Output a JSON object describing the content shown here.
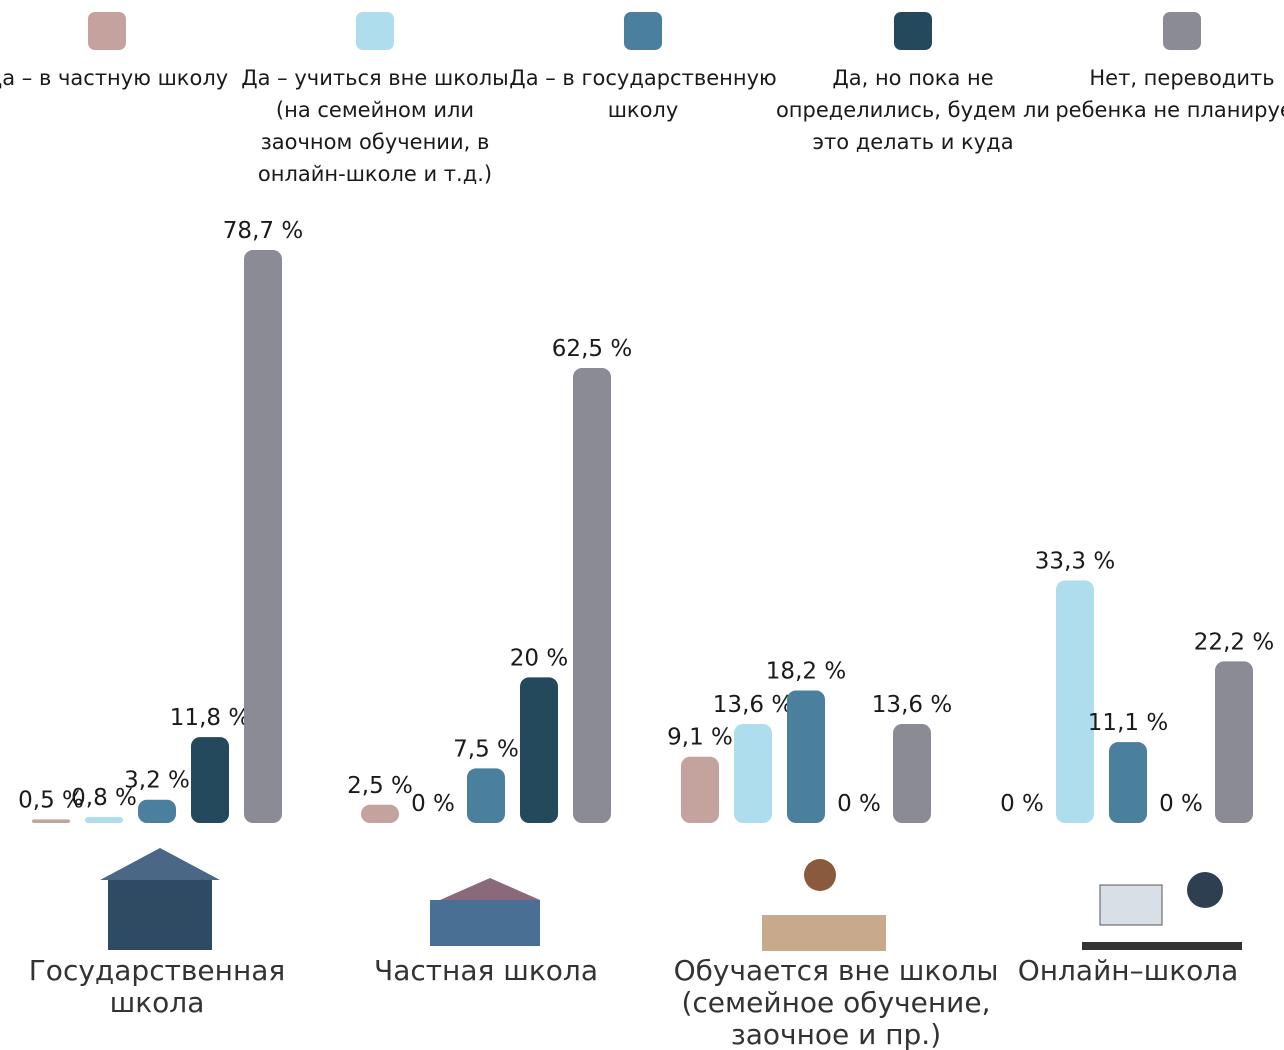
{
  "chart_data": {
    "type": "bar",
    "categories": [
      "Государственная школа",
      "Частная школа",
      "Обучается вне школы (семейное обучение, заочное и пр.)",
      "Онлайн–школа"
    ],
    "series": [
      {
        "name": "Да – в частную школу",
        "color": "#c4a39f",
        "values": [
          0.5,
          2.5,
          9.1,
          0
        ],
        "value_labels": [
          "0,5 %",
          "2,5 %",
          "9,1 %",
          "0 %"
        ]
      },
      {
        "name": "Да – учиться вне школы (на семейном или заочном обучении, в онлайн-школе и т.д.)",
        "color": "#aedded",
        "values": [
          0.8,
          0,
          13.6,
          33.3
        ],
        "value_labels": [
          "0,8 %",
          "0 %",
          "13,6 %",
          "33,3 %"
        ]
      },
      {
        "name": "Да – в государствен­ную школу",
        "color": "#4a7f9e",
        "values": [
          3.2,
          7.5,
          18.2,
          11.1
        ],
        "value_labels": [
          "3,2 %",
          "7,5 %",
          "18,2 %",
          "11,1 %"
        ]
      },
      {
        "name": "Да, но пока не определились, будем ли это делать и куда",
        "color": "#24495c",
        "values": [
          11.8,
          20,
          0,
          0
        ],
        "value_labels": [
          "11,8 %",
          "20 %",
          "0 %",
          "0 %"
        ]
      },
      {
        "name": "Нет, переводить ребенка не планируем",
        "color": "#8b8b95",
        "values": [
          78.7,
          62.5,
          13.6,
          22.2
        ],
        "value_labels": [
          "78,7 %",
          "62,5 %",
          "13,6 %",
          "22,2 %"
        ]
      }
    ]
  }
}
